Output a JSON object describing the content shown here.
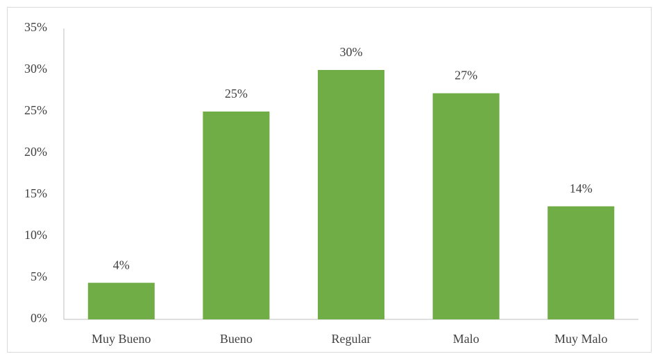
{
  "chart_data": {
    "type": "bar",
    "categories": [
      "Muy Bueno",
      "Bueno",
      "Regular",
      "Malo",
      "Muy Malo"
    ],
    "values": [
      4.4,
      25,
      30,
      27.2,
      13.6
    ],
    "value_labels": [
      "4%",
      "25%",
      "30%",
      "27%",
      "14%"
    ],
    "color": "#70ad47",
    "ylim": [
      0,
      35
    ],
    "yticks": [
      {
        "value": 0,
        "label": "0%"
      },
      {
        "value": 5,
        "label": "5%"
      },
      {
        "value": 10,
        "label": "10%"
      },
      {
        "value": 15,
        "label": "15%"
      },
      {
        "value": 20,
        "label": "20%"
      },
      {
        "value": 25,
        "label": "25%"
      },
      {
        "value": 30,
        "label": "30%"
      },
      {
        "value": 35,
        "label": "35%"
      }
    ],
    "grid": false
  }
}
